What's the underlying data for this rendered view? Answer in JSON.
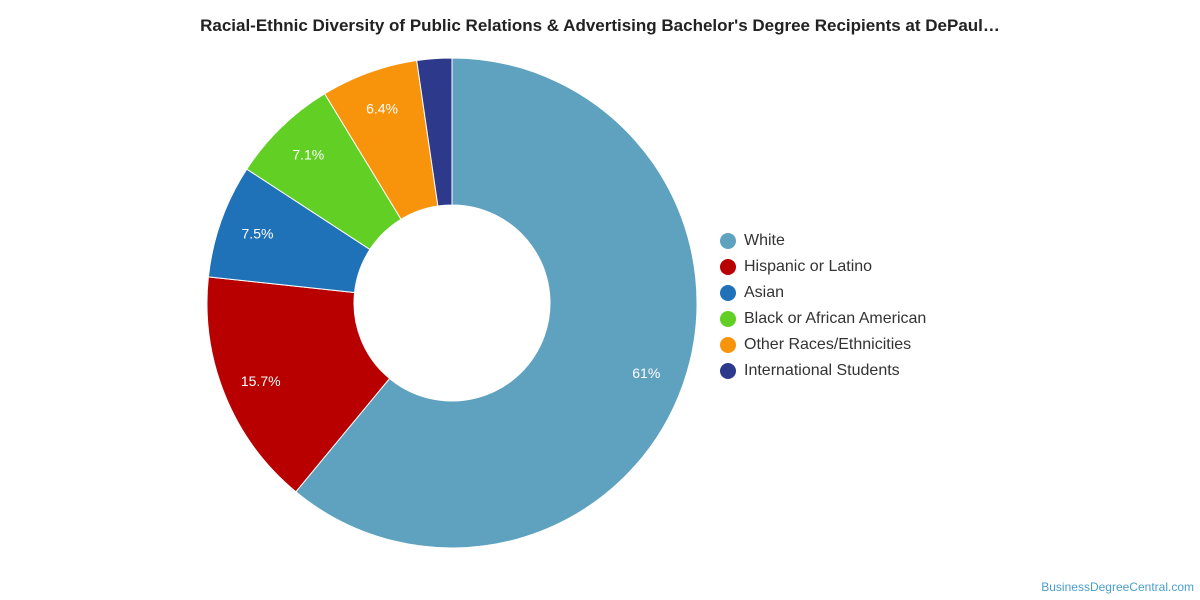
{
  "page": {
    "title": "Racial-Ethnic Diversity of Public Relations & Advertising Bachelor's Degree Recipients at DePaul…",
    "watermark": "BusinessDegreeCentral.com"
  },
  "chart_data": {
    "type": "pie",
    "variant": "donut",
    "title": "Racial-Ethnic Diversity of Public Relations & Advertising Bachelor's Degree Recipients at DePaul…",
    "legend_position": "right",
    "categories": [
      "White",
      "Hispanic or Latino",
      "Asian",
      "Black or African American",
      "Other Races/Ethnicities",
      "International Students"
    ],
    "values": [
      61,
      15.7,
      7.5,
      7.1,
      6.4,
      2.3
    ],
    "labels": [
      "61%",
      "15.7%",
      "7.5%",
      "7.1%",
      "6.4%",
      ""
    ],
    "colors": [
      "#5fa2c0",
      "#b80000",
      "#1f72b8",
      "#62cf24",
      "#f7940b",
      "#2d3a8c"
    ]
  }
}
